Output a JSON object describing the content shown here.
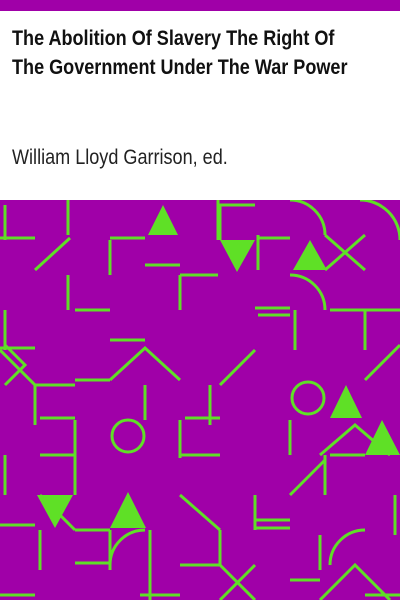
{
  "cover": {
    "title_line1": "The Abolition Of Slavery The Right Of",
    "title_line2": "The Government Under The War Power",
    "author": "William Lloyd Garrison, ed."
  },
  "colors": {
    "band": "#a000a8",
    "pattern_bg": "#a000a8",
    "pattern_fg": "#5fe026",
    "page_bg": "#ffffff"
  }
}
